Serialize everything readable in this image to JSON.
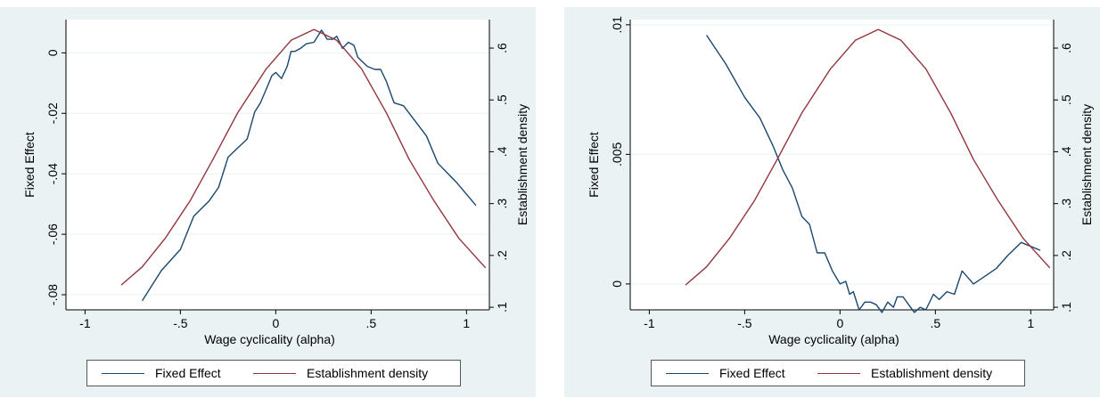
{
  "chart_data": [
    {
      "type": "line",
      "xlabel": "Wage cyclicality (alpha)",
      "ylabel_left": "Fixed Effect",
      "ylabel_right": "Establishment density",
      "xlim": [
        -1.1,
        1.12
      ],
      "ylim_left": [
        -0.085,
        0.011
      ],
      "ylim_right": [
        0.095,
        0.655
      ],
      "x_ticks": [
        -1,
        -0.5,
        0,
        0.5,
        1
      ],
      "x_tick_labels": [
        "-1",
        "-.5",
        "0",
        ".5",
        "1"
      ],
      "y_left_ticks": [
        0,
        -0.02,
        -0.04,
        -0.06,
        -0.08
      ],
      "y_left_tick_labels": [
        "0",
        "-.02",
        "-.04",
        "-.06",
        "-.08"
      ],
      "y_right_ticks": [
        0.1,
        0.2,
        0.3,
        0.4,
        0.5,
        0.6
      ],
      "y_right_tick_labels": [
        ".1",
        ".2",
        ".3",
        ".4",
        ".5",
        ".6"
      ],
      "grid": true,
      "legend_position": "bottom",
      "series": [
        {
          "name": "Fixed Effect",
          "axis": "left",
          "color": "#1a476f",
          "points": [
            [
              -0.7,
              -0.082
            ],
            [
              -0.6,
              -0.072
            ],
            [
              -0.5,
              -0.065
            ],
            [
              -0.43,
              -0.054
            ],
            [
              -0.35,
              -0.049
            ],
            [
              -0.3,
              -0.0445
            ],
            [
              -0.25,
              -0.0345
            ],
            [
              -0.2,
              -0.0315
            ],
            [
              -0.15,
              -0.0285
            ],
            [
              -0.11,
              -0.0195
            ],
            [
              -0.08,
              -0.0165
            ],
            [
              -0.05,
              -0.012
            ],
            [
              -0.02,
              -0.0075
            ],
            [
              0.0,
              -0.0065
            ],
            [
              0.03,
              -0.0085
            ],
            [
              0.06,
              -0.0045
            ],
            [
              0.08,
              0.0005
            ],
            [
              0.1,
              0.0005
            ],
            [
              0.13,
              0.0015
            ],
            [
              0.16,
              0.003
            ],
            [
              0.2,
              0.0035
            ],
            [
              0.24,
              0.0075
            ],
            [
              0.27,
              0.0045
            ],
            [
              0.3,
              0.0045
            ],
            [
              0.32,
              0.0055
            ],
            [
              0.35,
              0.0015
            ],
            [
              0.38,
              0.0035
            ],
            [
              0.41,
              0.0025
            ],
            [
              0.43,
              -0.0015
            ],
            [
              0.48,
              -0.0045
            ],
            [
              0.52,
              -0.0055
            ],
            [
              0.55,
              -0.0055
            ],
            [
              0.58,
              -0.0095
            ],
            [
              0.62,
              -0.0165
            ],
            [
              0.67,
              -0.0175
            ],
            [
              0.73,
              -0.0225
            ],
            [
              0.79,
              -0.0275
            ],
            [
              0.85,
              -0.0365
            ],
            [
              0.95,
              -0.043
            ],
            [
              1.05,
              -0.0505
            ]
          ]
        },
        {
          "name": "Establishment density",
          "axis": "right",
          "color": "#90353b",
          "points": [
            [
              -0.81,
              0.143
            ],
            [
              -0.7,
              0.178
            ],
            [
              -0.58,
              0.233
            ],
            [
              -0.45,
              0.305
            ],
            [
              -0.33,
              0.385
            ],
            [
              -0.2,
              0.475
            ],
            [
              -0.05,
              0.56
            ],
            [
              0.08,
              0.615
            ],
            [
              0.2,
              0.636
            ],
            [
              0.32,
              0.615
            ],
            [
              0.45,
              0.56
            ],
            [
              0.58,
              0.475
            ],
            [
              0.7,
              0.385
            ],
            [
              0.83,
              0.305
            ],
            [
              0.96,
              0.233
            ],
            [
              1.1,
              0.176
            ]
          ]
        }
      ]
    },
    {
      "type": "line",
      "xlabel": "Wage cyclicality (alpha)",
      "ylabel_left": "Fixed Effect",
      "ylabel_right": "Establishment density",
      "xlim": [
        -1.1,
        1.12
      ],
      "ylim_left": [
        -0.001,
        0.0102
      ],
      "ylim_right": [
        0.095,
        0.655
      ],
      "x_ticks": [
        -1,
        -0.5,
        0,
        0.5,
        1
      ],
      "x_tick_labels": [
        "-1",
        "-.5",
        "0",
        ".5",
        "1"
      ],
      "y_left_ticks": [
        0,
        0.005,
        0.01
      ],
      "y_left_tick_labels": [
        "0",
        ".005",
        ".01"
      ],
      "y_right_ticks": [
        0.1,
        0.2,
        0.3,
        0.4,
        0.5,
        0.6
      ],
      "y_right_tick_labels": [
        ".1",
        ".2",
        ".3",
        ".4",
        ".5",
        ".6"
      ],
      "grid": true,
      "legend_position": "bottom",
      "series": [
        {
          "name": "Fixed Effect",
          "axis": "left",
          "color": "#1a476f",
          "points": [
            [
              -0.7,
              0.0096
            ],
            [
              -0.6,
              0.0085
            ],
            [
              -0.5,
              0.0072
            ],
            [
              -0.42,
              0.0064
            ],
            [
              -0.35,
              0.0053
            ],
            [
              -0.3,
              0.0044
            ],
            [
              -0.25,
              0.0037
            ],
            [
              -0.2,
              0.0026
            ],
            [
              -0.16,
              0.0023
            ],
            [
              -0.12,
              0.0012
            ],
            [
              -0.08,
              0.0012
            ],
            [
              -0.04,
              0.0005
            ],
            [
              0.0,
              0.0
            ],
            [
              0.03,
              0.0001
            ],
            [
              0.05,
              -0.0004
            ],
            [
              0.07,
              -0.0003
            ],
            [
              0.1,
              -0.001
            ],
            [
              0.13,
              -0.0007
            ],
            [
              0.16,
              -0.0007
            ],
            [
              0.19,
              -0.0008
            ],
            [
              0.22,
              -0.0011
            ],
            [
              0.25,
              -0.0007
            ],
            [
              0.28,
              -0.0009
            ],
            [
              0.3,
              -0.0005
            ],
            [
              0.33,
              -0.0005
            ],
            [
              0.36,
              -0.0008
            ],
            [
              0.39,
              -0.0011
            ],
            [
              0.42,
              -0.0009
            ],
            [
              0.45,
              -0.001
            ],
            [
              0.49,
              -0.0004
            ],
            [
              0.52,
              -0.0006
            ],
            [
              0.56,
              -0.0003
            ],
            [
              0.6,
              -0.0004
            ],
            [
              0.64,
              0.0005
            ],
            [
              0.7,
              0.0
            ],
            [
              0.76,
              0.0003
            ],
            [
              0.82,
              0.0006
            ],
            [
              0.88,
              0.0011
            ],
            [
              0.95,
              0.0016
            ],
            [
              1.05,
              0.0013
            ]
          ]
        },
        {
          "name": "Establishment density",
          "axis": "right",
          "color": "#90353b",
          "points": [
            [
              -0.81,
              0.143
            ],
            [
              -0.7,
              0.178
            ],
            [
              -0.58,
              0.233
            ],
            [
              -0.45,
              0.305
            ],
            [
              -0.33,
              0.385
            ],
            [
              -0.2,
              0.475
            ],
            [
              -0.05,
              0.56
            ],
            [
              0.08,
              0.615
            ],
            [
              0.2,
              0.636
            ],
            [
              0.32,
              0.615
            ],
            [
              0.45,
              0.56
            ],
            [
              0.58,
              0.475
            ],
            [
              0.7,
              0.385
            ],
            [
              0.83,
              0.305
            ],
            [
              0.96,
              0.233
            ],
            [
              1.1,
              0.176
            ]
          ]
        }
      ]
    }
  ]
}
